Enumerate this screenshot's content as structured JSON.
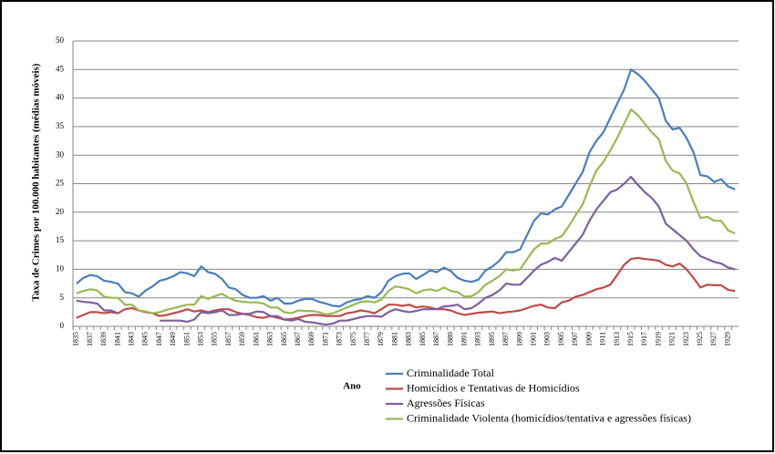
{
  "chart_data": {
    "type": "line",
    "y_label": "Taxa de Crimes por 100.000 habitantes (médias móveis)",
    "x_label": "Ano",
    "categories": [
      "1835",
      null,
      "1837",
      null,
      "1839",
      null,
      "1841",
      null,
      "1843",
      null,
      "1845",
      null,
      "1847",
      null,
      "1849",
      null,
      "1851",
      null,
      "1853",
      null,
      "1855",
      null,
      "1857",
      null,
      "1859",
      null,
      "1861",
      null,
      "1863",
      null,
      "1865",
      null,
      "1867",
      null,
      "1869",
      null,
      "1871",
      null,
      "1873",
      null,
      "1875",
      null,
      "1877",
      null,
      "1879",
      null,
      "1881",
      null,
      "1883",
      null,
      "1885",
      null,
      "1887",
      null,
      "1889",
      null,
      "1891",
      null,
      "1893",
      null,
      "1895",
      null,
      "1897",
      null,
      "1899",
      null,
      "1901",
      null,
      "1903",
      null,
      "1905",
      null,
      "1907",
      null,
      "1909",
      null,
      "1911",
      null,
      "1913",
      null,
      "1915",
      null,
      "1917",
      null,
      "1919",
      null,
      "1921",
      null,
      "1923",
      null,
      "1925",
      null,
      "1927",
      null,
      "1929",
      null
    ],
    "series": [
      {
        "name": "Criminalidade Total",
        "color": "#4a7ebb",
        "values": [
          7.5,
          8.5,
          9,
          8.8,
          8,
          7.8,
          7.5,
          6,
          5.8,
          5.2,
          6.3,
          7,
          8,
          8.3,
          8.8,
          9.5,
          9.3,
          8.8,
          10.5,
          9.5,
          9.2,
          8.3,
          6.8,
          6.5,
          5.5,
          5,
          5,
          5.3,
          4.5,
          5,
          4,
          4,
          4.5,
          4.8,
          4.8,
          4.3,
          4,
          3.6,
          3.5,
          4.2,
          4.6,
          4.8,
          5.3,
          5,
          6,
          8,
          8.8,
          9.2,
          9.3,
          8.3,
          9,
          9.8,
          9.5,
          10.3,
          9.7,
          8.5,
          8,
          7.8,
          8.2,
          9.8,
          10.5,
          11.5,
          13,
          13,
          13.5,
          16,
          18.5,
          19.8,
          19.6,
          20.5,
          21,
          23,
          25,
          27,
          30.5,
          32.5,
          34,
          36.5,
          39,
          41.5,
          45,
          44.2,
          43,
          41.5,
          40,
          36,
          34.5,
          34.8,
          33,
          30.5,
          26.5,
          26.3,
          25.3,
          25.8,
          24.5,
          24
        ]
      },
      {
        "name": "Homicídios e Tentativas de Homicídios",
        "color": "#be4b48",
        "values": [
          1.5,
          2,
          2.5,
          2.5,
          2.3,
          2.5,
          2.3,
          3,
          3.2,
          2.8,
          2.5,
          2.3,
          1.8,
          2,
          2.3,
          2.6,
          3,
          2.6,
          2.8,
          2.5,
          2.8,
          3,
          3,
          2.5,
          2.2,
          2,
          1.6,
          1.5,
          1.8,
          1.5,
          1.2,
          1.3,
          1.5,
          1.8,
          2,
          2,
          1.8,
          1.8,
          1.8,
          2.3,
          2.5,
          2.8,
          2.6,
          2.3,
          3,
          3.8,
          3.8,
          3.6,
          3.8,
          3.3,
          3.5,
          3.3,
          3,
          3,
          2.8,
          2.3,
          2,
          2.2,
          2.4,
          2.5,
          2.6,
          2.3,
          2.5,
          2.6,
          2.8,
          3.2,
          3.6,
          3.8,
          3.3,
          3.2,
          4.2,
          4.5,
          5.2,
          5.5,
          6,
          6.5,
          6.8,
          7.3,
          9,
          10.8,
          11.8,
          12,
          11.8,
          11.7,
          11.5,
          10.8,
          10.5,
          11,
          10,
          8.5,
          6.8,
          7.3,
          7.2,
          7.2,
          6.4,
          6.2
        ]
      },
      {
        "name": "Agressões Físicas",
        "color": "#7d5fa0",
        "values": [
          4.5,
          4.3,
          4.2,
          4,
          2.8,
          2.8,
          2.3,
          null,
          null,
          null,
          null,
          null,
          1,
          1,
          1,
          1,
          0.8,
          1.2,
          2.5,
          2.3,
          2.5,
          2.8,
          2,
          2,
          2.2,
          2.2,
          2.6,
          2.5,
          1.8,
          1.8,
          1.2,
          1,
          1.3,
          0.8,
          0.7,
          0.5,
          0.3,
          0.5,
          1,
          1,
          1.3,
          1.6,
          1.8,
          1.8,
          1.7,
          2.5,
          3,
          2.7,
          2.5,
          2.7,
          3,
          3,
          3,
          3.5,
          3.6,
          3.8,
          3,
          3.2,
          4,
          5,
          5.5,
          6.3,
          7.5,
          7.3,
          7.3,
          8.5,
          9.8,
          10.8,
          11.3,
          12,
          11.5,
          13,
          14.5,
          16,
          18.5,
          20.5,
          22,
          23.5,
          24,
          25,
          26.2,
          24.8,
          23.5,
          22.5,
          21,
          18,
          17,
          16,
          15,
          13.5,
          12.3,
          11.8,
          11.3,
          11,
          10.3,
          10
        ]
      },
      {
        "name": "Criminalidade Violenta (homicídios/tentativa e agressões físicas)",
        "color": "#98b954",
        "values": [
          5.8,
          6.2,
          6.5,
          6.3,
          5.2,
          5,
          5,
          3.8,
          3.8,
          2.8,
          2.6,
          2.3,
          2.5,
          2.9,
          3.2,
          3.5,
          3.8,
          3.8,
          5.3,
          4.8,
          5.3,
          5.7,
          5,
          4.5,
          4.3,
          4.2,
          4.2,
          4,
          3.3,
          3.3,
          2.5,
          2.3,
          2.8,
          2.7,
          2.7,
          2.5,
          2.1,
          2.3,
          2.8,
          3.3,
          3.8,
          4.3,
          4.4,
          4.2,
          4.7,
          6.2,
          7,
          6.8,
          6.5,
          5.8,
          6.3,
          6.5,
          6.2,
          6.8,
          6.2,
          6,
          5.2,
          5.3,
          6,
          7.3,
          8,
          8.8,
          10,
          9.8,
          10,
          11.8,
          13.5,
          14.5,
          14.5,
          15.3,
          15.8,
          17.5,
          19.5,
          21.3,
          24.5,
          27.3,
          28.8,
          30.8,
          33,
          35.5,
          38,
          37,
          35.5,
          34,
          32.8,
          29,
          27.3,
          26.8,
          25,
          21.8,
          19,
          19.2,
          18.5,
          18.5,
          16.8,
          16.3
        ]
      }
    ],
    "ylim": [
      0,
      50
    ],
    "yticks": [
      0,
      5,
      10,
      15,
      20,
      25,
      30,
      35,
      40,
      45,
      50
    ],
    "grid": true
  }
}
